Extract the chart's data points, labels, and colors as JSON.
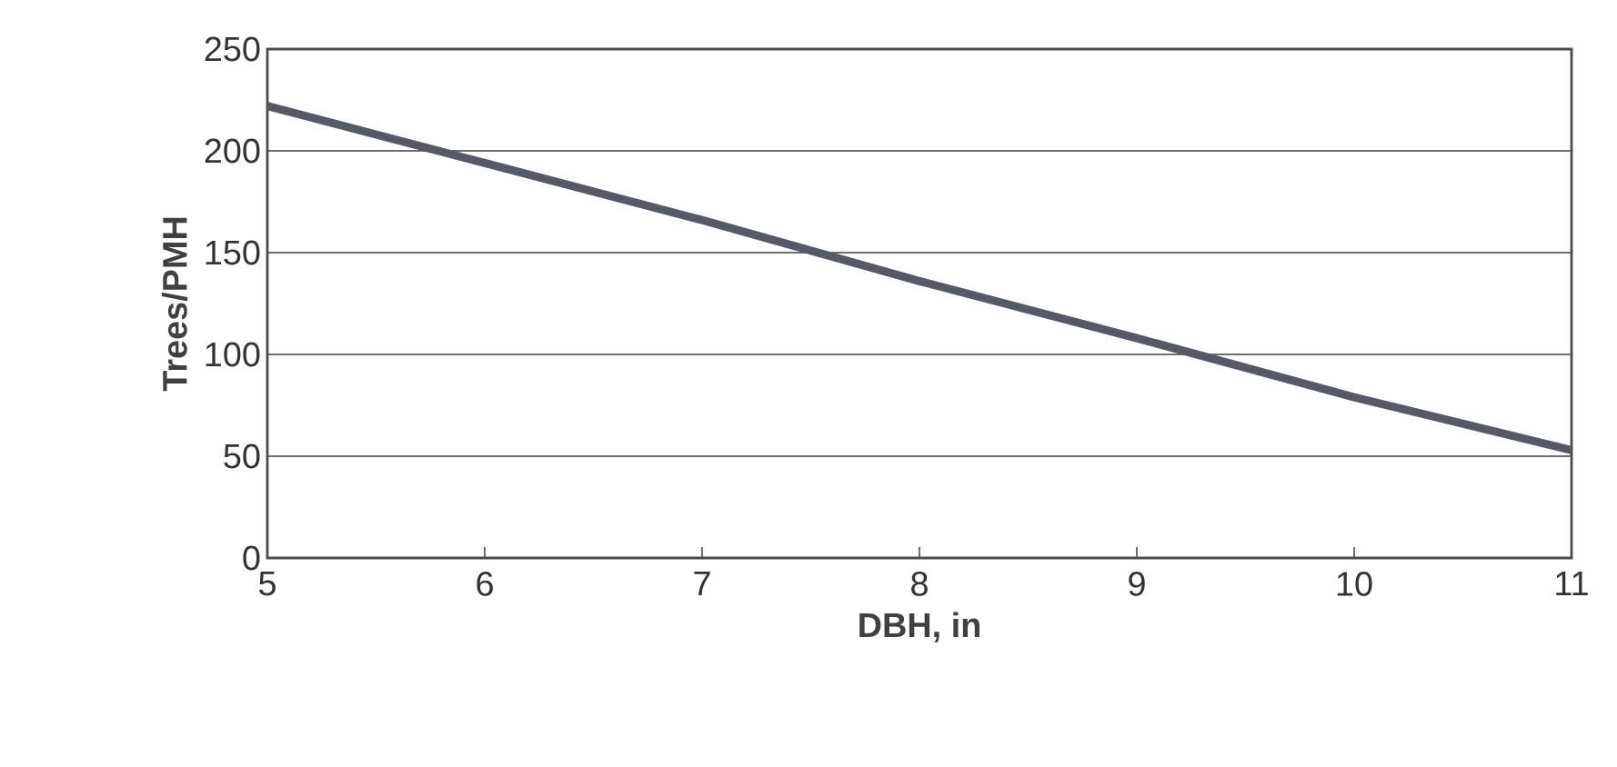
{
  "chart_data": {
    "type": "line",
    "xlabel": "DBH, in",
    "ylabel": "Trees/PMH",
    "x": [
      5,
      6,
      7,
      8,
      9,
      10,
      11
    ],
    "series": [
      {
        "color": "#555a66",
        "values": [
          222,
          194,
          166,
          136,
          108,
          79,
          53
        ]
      }
    ],
    "xlim": [
      5,
      11
    ],
    "xticks": [
      5,
      6,
      7,
      8,
      9,
      10,
      11
    ],
    "ylim": [
      0,
      250
    ],
    "yticks": [
      0,
      50,
      100,
      150,
      200,
      250
    ],
    "grid": "y",
    "marker": "none",
    "line_style": "solid"
  }
}
